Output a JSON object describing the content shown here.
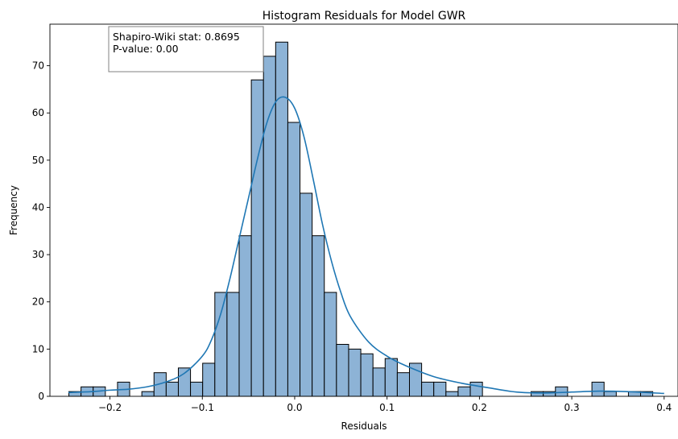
{
  "chart_data": {
    "type": "histogram",
    "title": "Histogram Residuals for Model GWR",
    "xlabel": "Residuals",
    "ylabel": "Frequency",
    "xlim": [
      -0.265,
      0.415
    ],
    "ylim": [
      0,
      78.8
    ],
    "xticks": [
      -0.2,
      -0.1,
      0.0,
      0.1,
      0.2,
      0.3,
      0.4
    ],
    "xtick_labels": [
      "−0.2",
      "−0.1",
      "0.0",
      "0.1",
      "0.2",
      "0.3",
      "0.4"
    ],
    "yticks": [
      0,
      10,
      20,
      30,
      40,
      50,
      60,
      70
    ],
    "ytick_labels": [
      "0",
      "10",
      "20",
      "30",
      "40",
      "50",
      "60",
      "70"
    ],
    "bin_start": -0.2445,
    "bin_width": 0.01317,
    "counts": [
      1,
      2,
      2,
      0,
      3,
      0,
      1,
      5,
      3,
      6,
      3,
      7,
      22,
      22,
      34,
      67,
      72,
      75,
      58,
      43,
      34,
      22,
      11,
      10,
      9,
      6,
      8,
      5,
      7,
      3,
      3,
      1,
      2,
      3,
      0,
      0,
      0,
      0,
      1,
      1,
      2,
      0,
      0,
      3,
      1,
      0,
      1,
      1
    ],
    "kde": {
      "x": [
        -0.245,
        -0.22,
        -0.2,
        -0.18,
        -0.16,
        -0.14,
        -0.12,
        -0.1,
        -0.09,
        -0.08,
        -0.07,
        -0.06,
        -0.05,
        -0.04,
        -0.03,
        -0.02,
        -0.01,
        0.0,
        0.01,
        0.02,
        0.03,
        0.04,
        0.05,
        0.06,
        0.08,
        0.1,
        0.12,
        0.15,
        0.18,
        0.21,
        0.24,
        0.27,
        0.3,
        0.33,
        0.36,
        0.4
      ],
      "y": [
        0.8,
        1.0,
        1.3,
        1.5,
        2.0,
        3.0,
        4.8,
        8.5,
        12.0,
        17.5,
        25.0,
        33.5,
        42.0,
        50.5,
        58.0,
        62.5,
        63.3,
        61.0,
        55.0,
        46.0,
        36.5,
        28.5,
        22.0,
        17.0,
        11.5,
        8.5,
        6.5,
        4.2,
        2.8,
        1.8,
        0.9,
        0.7,
        0.9,
        1.1,
        1.0,
        0.6
      ]
    },
    "colors": {
      "bar_fill": "#8db3d6",
      "bar_edge": "#000000",
      "kde_line": "#1f77b4"
    },
    "grid": false,
    "stats_box": {
      "line1": "Shapiro-Wiki stat: 0.8695",
      "line2": "P-value: 0.00"
    }
  }
}
